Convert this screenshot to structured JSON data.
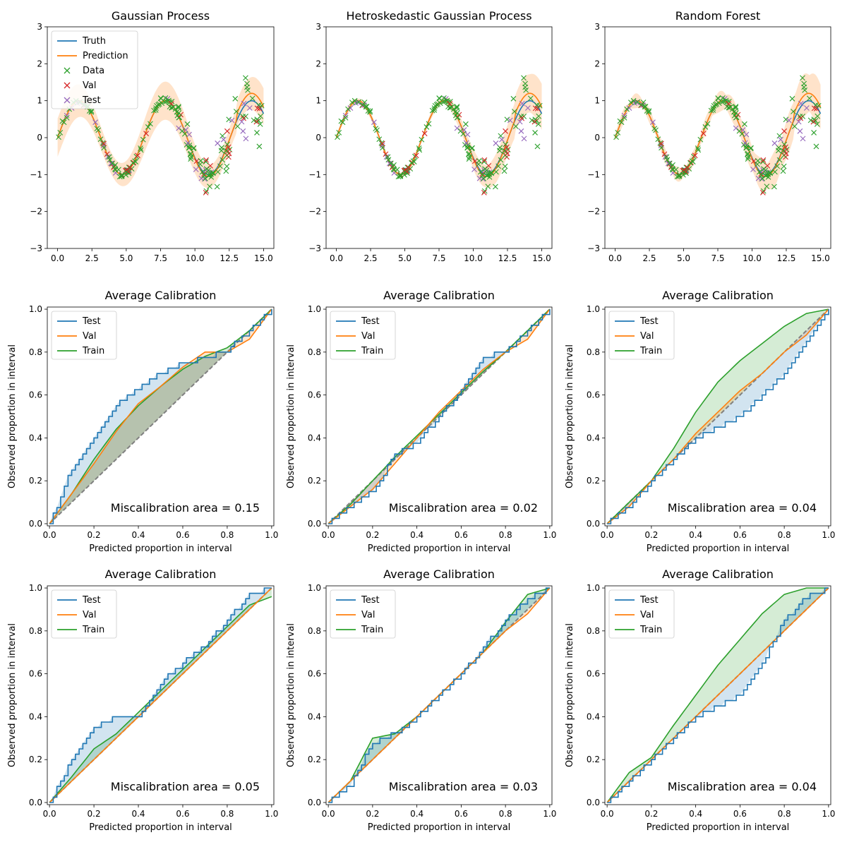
{
  "colors": {
    "truth": "#1f77b4",
    "prediction": "#ff7f0e",
    "data": "#2ca02c",
    "val": "#d62728",
    "test": "#9467bd",
    "diag": "#808080"
  },
  "chart_data": [
    {
      "type": "line",
      "title": "Gaussian Process",
      "xlim": [
        -0.75,
        15.75
      ],
      "ylim": [
        -3,
        3
      ],
      "xticks": [
        "0.0",
        "2.5",
        "5.0",
        "7.5",
        "10.0",
        "12.5",
        "15.0"
      ],
      "yticks": [
        "−3",
        "−2",
        "−1",
        "0",
        "1",
        "2",
        "3"
      ],
      "legend": [
        "Truth",
        "Prediction",
        "Data",
        "Val",
        "Test"
      ],
      "legend_position": "upper-left",
      "band_scale": 0.45,
      "band_min": 0.15,
      "band_mode": "const"
    },
    {
      "type": "line",
      "title": "Hetroskedastic Gaussian Process",
      "xlim": [
        -0.75,
        15.75
      ],
      "ylim": [
        -3,
        3
      ],
      "xticks": [
        "0.0",
        "2.5",
        "5.0",
        "7.5",
        "10.0",
        "12.5",
        "15.0"
      ],
      "yticks": [
        "−3",
        "−2",
        "−1",
        "0",
        "1",
        "2",
        "3"
      ],
      "legend": [],
      "band_scale": 0.5,
      "band_min": 0.05,
      "band_mode": "hetero"
    },
    {
      "type": "line",
      "title": "Random Forest",
      "xlim": [
        -0.75,
        15.75
      ],
      "ylim": [
        -3,
        3
      ],
      "xticks": [
        "0.0",
        "2.5",
        "5.0",
        "7.5",
        "10.0",
        "12.5",
        "15.0"
      ],
      "yticks": [
        "−3",
        "−2",
        "−1",
        "0",
        "1",
        "2",
        "3"
      ],
      "legend": [],
      "band_scale": 0.45,
      "band_min": 0.08,
      "band_mode": "rf"
    },
    {
      "type": "line",
      "title": "Average Calibration",
      "xlabel": "Predicted proportion in interval",
      "ylabel": "Observed proportion in interval",
      "legend": [
        "Test",
        "Val",
        "Train"
      ],
      "annotation": "Miscalibration area = 0.15",
      "series": [
        {
          "name": "Test",
          "x": [
            0,
            0.1,
            0.2,
            0.3,
            0.4,
            0.5,
            0.6,
            0.7,
            0.8,
            0.9,
            1
          ],
          "y": [
            0,
            0.26,
            0.4,
            0.55,
            0.63,
            0.7,
            0.75,
            0.77,
            0.81,
            0.9,
            1
          ]
        },
        {
          "name": "Val",
          "x": [
            0,
            0.1,
            0.2,
            0.3,
            0.4,
            0.5,
            0.6,
            0.7,
            0.8,
            0.9,
            1
          ],
          "y": [
            0,
            0.14,
            0.28,
            0.43,
            0.56,
            0.64,
            0.73,
            0.8,
            0.8,
            0.86,
            1
          ]
        },
        {
          "name": "Train",
          "x": [
            0,
            0.1,
            0.2,
            0.3,
            0.4,
            0.5,
            0.6,
            0.7,
            0.8,
            0.9,
            1
          ],
          "y": [
            0,
            0.14,
            0.3,
            0.44,
            0.55,
            0.64,
            0.72,
            0.78,
            0.82,
            0.9,
            1
          ]
        }
      ]
    },
    {
      "type": "line",
      "title": "Average Calibration",
      "xlabel": "Predicted proportion in interval",
      "ylabel": "Observed proportion in interval",
      "legend": [
        "Test",
        "Val",
        "Train"
      ],
      "annotation": "Miscalibration area = 0.02",
      "series": [
        {
          "name": "Test",
          "x": [
            0,
            0.1,
            0.2,
            0.3,
            0.4,
            0.5,
            0.6,
            0.7,
            0.8,
            0.9,
            1
          ],
          "y": [
            0,
            0.08,
            0.15,
            0.32,
            0.38,
            0.5,
            0.62,
            0.78,
            0.8,
            0.9,
            1
          ]
        },
        {
          "name": "Val",
          "x": [
            0,
            0.1,
            0.2,
            0.3,
            0.4,
            0.5,
            0.6,
            0.7,
            0.8,
            0.9,
            1
          ],
          "y": [
            0,
            0.08,
            0.16,
            0.28,
            0.4,
            0.52,
            0.62,
            0.72,
            0.8,
            0.86,
            1
          ]
        },
        {
          "name": "Train",
          "x": [
            0,
            0.1,
            0.2,
            0.3,
            0.4,
            0.5,
            0.6,
            0.7,
            0.8,
            0.9,
            1
          ],
          "y": [
            0,
            0.09,
            0.2,
            0.31,
            0.41,
            0.51,
            0.61,
            0.71,
            0.8,
            0.9,
            1
          ]
        }
      ]
    },
    {
      "type": "line",
      "title": "Average Calibration",
      "xlabel": "Predicted proportion in interval",
      "ylabel": "Observed proportion in interval",
      "legend": [
        "Test",
        "Val",
        "Train"
      ],
      "annotation": "Miscalibration area = 0.04",
      "series": [
        {
          "name": "Test",
          "x": [
            0,
            0.1,
            0.2,
            0.3,
            0.4,
            0.5,
            0.6,
            0.7,
            0.8,
            0.9,
            1
          ],
          "y": [
            0,
            0.08,
            0.2,
            0.3,
            0.4,
            0.45,
            0.5,
            0.6,
            0.7,
            0.85,
            1
          ]
        },
        {
          "name": "Val",
          "x": [
            0,
            0.1,
            0.2,
            0.3,
            0.4,
            0.5,
            0.6,
            0.7,
            0.8,
            0.9,
            1
          ],
          "y": [
            0,
            0.08,
            0.2,
            0.3,
            0.42,
            0.52,
            0.62,
            0.7,
            0.8,
            0.88,
            1
          ]
        },
        {
          "name": "Train",
          "x": [
            0,
            0.1,
            0.2,
            0.3,
            0.4,
            0.5,
            0.6,
            0.7,
            0.8,
            0.9,
            1
          ],
          "y": [
            0,
            0.1,
            0.2,
            0.35,
            0.52,
            0.66,
            0.76,
            0.84,
            0.92,
            0.98,
            1
          ]
        }
      ]
    },
    {
      "type": "line",
      "title": "Average Calibration",
      "xlabel": "Predicted proportion in interval",
      "ylabel": "Observed proportion in interval",
      "legend": [
        "Test",
        "Val",
        "Train"
      ],
      "annotation": "Miscalibration area = 0.05",
      "series": [
        {
          "name": "Test",
          "x": [
            0,
            0.1,
            0.2,
            0.3,
            0.4,
            0.5,
            0.6,
            0.7,
            0.8,
            0.9,
            1
          ],
          "y": [
            0,
            0.2,
            0.35,
            0.4,
            0.4,
            0.56,
            0.65,
            0.73,
            0.85,
            0.97,
            1
          ]
        },
        {
          "name": "Val",
          "x": [
            0,
            0.1,
            0.2,
            0.3,
            0.4,
            0.5,
            0.6,
            0.7,
            0.8,
            0.9,
            1
          ],
          "y": [
            0,
            0.1,
            0.2,
            0.3,
            0.4,
            0.5,
            0.6,
            0.7,
            0.8,
            0.9,
            1
          ]
        },
        {
          "name": "Train",
          "x": [
            0,
            0.1,
            0.2,
            0.3,
            0.4,
            0.5,
            0.6,
            0.7,
            0.8,
            0.9,
            1
          ],
          "y": [
            0,
            0.12,
            0.25,
            0.32,
            0.42,
            0.52,
            0.62,
            0.72,
            0.82,
            0.92,
            0.96
          ]
        }
      ]
    },
    {
      "type": "line",
      "title": "Average Calibration",
      "xlabel": "Predicted proportion in interval",
      "ylabel": "Observed proportion in interval",
      "legend": [
        "Test",
        "Val",
        "Train"
      ],
      "annotation": "Miscalibration area = 0.03",
      "series": [
        {
          "name": "Test",
          "x": [
            0,
            0.1,
            0.2,
            0.3,
            0.4,
            0.5,
            0.6,
            0.7,
            0.8,
            0.9,
            1
          ],
          "y": [
            0,
            0.08,
            0.28,
            0.32,
            0.4,
            0.5,
            0.6,
            0.72,
            0.85,
            0.95,
            1
          ]
        },
        {
          "name": "Val",
          "x": [
            0,
            0.1,
            0.2,
            0.3,
            0.4,
            0.5,
            0.6,
            0.7,
            0.8,
            0.9,
            1
          ],
          "y": [
            0,
            0.1,
            0.2,
            0.3,
            0.4,
            0.5,
            0.6,
            0.7,
            0.8,
            0.88,
            1
          ]
        },
        {
          "name": "Train",
          "x": [
            0,
            0.1,
            0.2,
            0.3,
            0.4,
            0.5,
            0.6,
            0.7,
            0.8,
            0.9,
            1
          ],
          "y": [
            0,
            0.1,
            0.3,
            0.32,
            0.4,
            0.5,
            0.6,
            0.7,
            0.84,
            0.97,
            1
          ]
        }
      ]
    },
    {
      "type": "line",
      "title": "Average Calibration",
      "xlabel": "Predicted proportion in interval",
      "ylabel": "Observed proportion in interval",
      "legend": [
        "Test",
        "Val",
        "Train"
      ],
      "annotation": "Miscalibration area = 0.04",
      "series": [
        {
          "name": "Test",
          "x": [
            0,
            0.1,
            0.2,
            0.3,
            0.4,
            0.5,
            0.6,
            0.7,
            0.8,
            0.9,
            1
          ],
          "y": [
            0,
            0.1,
            0.2,
            0.3,
            0.4,
            0.45,
            0.5,
            0.65,
            0.85,
            0.96,
            1
          ]
        },
        {
          "name": "Val",
          "x": [
            0,
            0.1,
            0.2,
            0.3,
            0.4,
            0.5,
            0.6,
            0.7,
            0.8,
            0.9,
            1
          ],
          "y": [
            0,
            0.1,
            0.2,
            0.3,
            0.4,
            0.5,
            0.6,
            0.7,
            0.8,
            0.9,
            1
          ]
        },
        {
          "name": "Train",
          "x": [
            0,
            0.1,
            0.2,
            0.3,
            0.4,
            0.5,
            0.6,
            0.7,
            0.8,
            0.9,
            1
          ],
          "y": [
            0,
            0.14,
            0.21,
            0.36,
            0.5,
            0.64,
            0.76,
            0.88,
            0.97,
            1,
            1
          ]
        }
      ]
    }
  ]
}
